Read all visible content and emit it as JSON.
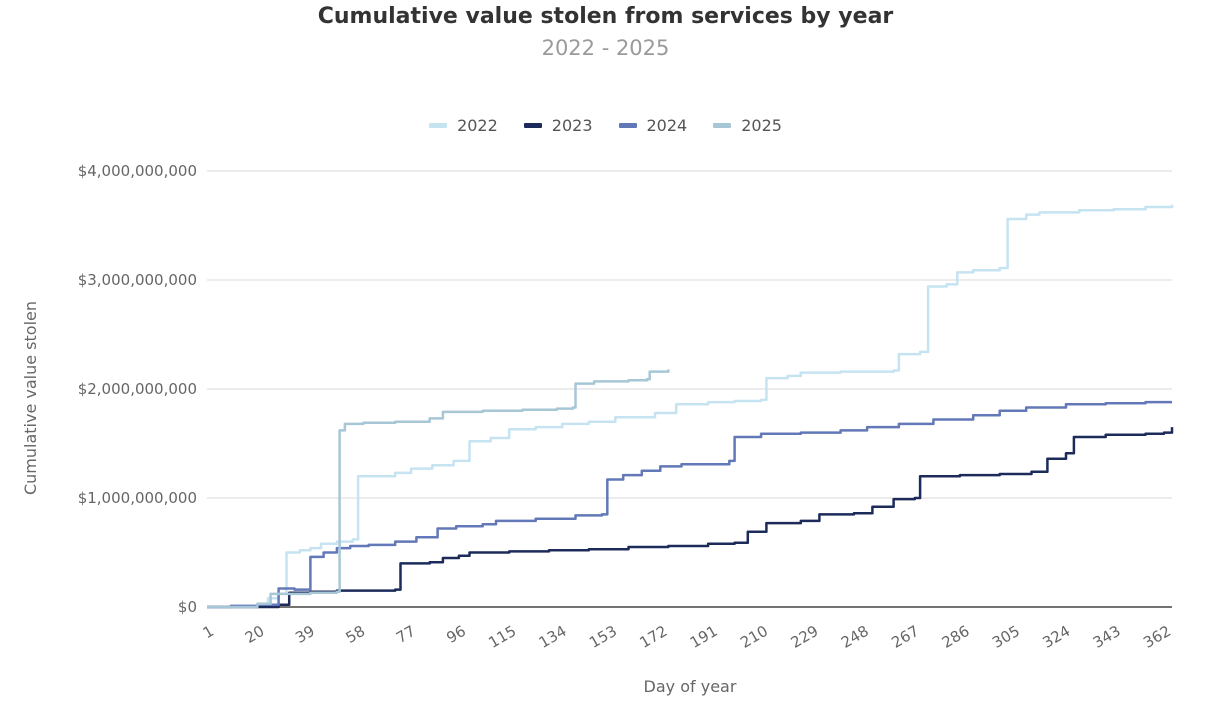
{
  "chart_data": {
    "type": "line",
    "title": "Cumulative value stolen from services by year",
    "subtitle": "2022 - 2025",
    "xlabel": "Day of year",
    "ylabel": "Cumulative value stolen",
    "xlim": [
      1,
      365
    ],
    "ylim": [
      0,
      4000000000
    ],
    "x_ticks": [
      1,
      20,
      39,
      58,
      77,
      96,
      115,
      134,
      153,
      172,
      191,
      210,
      229,
      248,
      267,
      286,
      305,
      324,
      343,
      362
    ],
    "y_ticks": [
      0,
      1000000000,
      2000000000,
      3000000000,
      4000000000
    ],
    "y_tick_labels": [
      "$0",
      "$1,000,000,000",
      "$2,000,000,000",
      "$3,000,000,000",
      "$4,000,000,000"
    ],
    "grid": true,
    "legend_position": "top",
    "series": [
      {
        "name": "2022",
        "color": "#c6e3f2",
        "points": [
          [
            1,
            0
          ],
          [
            10,
            10000000
          ],
          [
            20,
            30000000
          ],
          [
            24,
            80000000
          ],
          [
            28,
            120000000
          ],
          [
            31,
            500000000
          ],
          [
            36,
            520000000
          ],
          [
            40,
            540000000
          ],
          [
            44,
            580000000
          ],
          [
            50,
            600000000
          ],
          [
            56,
            620000000
          ],
          [
            58,
            1200000000
          ],
          [
            66,
            1200000000
          ],
          [
            72,
            1230000000
          ],
          [
            78,
            1270000000
          ],
          [
            86,
            1300000000
          ],
          [
            94,
            1340000000
          ],
          [
            100,
            1520000000
          ],
          [
            108,
            1550000000
          ],
          [
            115,
            1630000000
          ],
          [
            125,
            1650000000
          ],
          [
            135,
            1680000000
          ],
          [
            145,
            1700000000
          ],
          [
            155,
            1740000000
          ],
          [
            170,
            1780000000
          ],
          [
            178,
            1860000000
          ],
          [
            190,
            1880000000
          ],
          [
            200,
            1890000000
          ],
          [
            210,
            1900000000
          ],
          [
            212,
            2100000000
          ],
          [
            220,
            2120000000
          ],
          [
            225,
            2150000000
          ],
          [
            240,
            2160000000
          ],
          [
            260,
            2170000000
          ],
          [
            262,
            2320000000
          ],
          [
            270,
            2340000000
          ],
          [
            273,
            2940000000
          ],
          [
            280,
            2960000000
          ],
          [
            284,
            3070000000
          ],
          [
            290,
            3090000000
          ],
          [
            300,
            3110000000
          ],
          [
            303,
            3560000000
          ],
          [
            310,
            3600000000
          ],
          [
            315,
            3620000000
          ],
          [
            330,
            3640000000
          ],
          [
            343,
            3650000000
          ],
          [
            355,
            3670000000
          ],
          [
            365,
            3690000000
          ]
        ]
      },
      {
        "name": "2023",
        "color": "#1c2b5a",
        "points": [
          [
            1,
            0
          ],
          [
            20,
            0
          ],
          [
            28,
            20000000
          ],
          [
            32,
            130000000
          ],
          [
            40,
            140000000
          ],
          [
            50,
            150000000
          ],
          [
            60,
            150000000
          ],
          [
            72,
            160000000
          ],
          [
            74,
            400000000
          ],
          [
            85,
            410000000
          ],
          [
            90,
            450000000
          ],
          [
            96,
            470000000
          ],
          [
            100,
            500000000
          ],
          [
            115,
            510000000
          ],
          [
            130,
            520000000
          ],
          [
            145,
            530000000
          ],
          [
            160,
            550000000
          ],
          [
            175,
            560000000
          ],
          [
            190,
            580000000
          ],
          [
            200,
            590000000
          ],
          [
            205,
            690000000
          ],
          [
            212,
            770000000
          ],
          [
            225,
            790000000
          ],
          [
            232,
            850000000
          ],
          [
            245,
            860000000
          ],
          [
            252,
            920000000
          ],
          [
            260,
            990000000
          ],
          [
            268,
            1000000000
          ],
          [
            270,
            1200000000
          ],
          [
            285,
            1210000000
          ],
          [
            300,
            1220000000
          ],
          [
            312,
            1240000000
          ],
          [
            318,
            1360000000
          ],
          [
            325,
            1410000000
          ],
          [
            328,
            1560000000
          ],
          [
            340,
            1580000000
          ],
          [
            355,
            1590000000
          ],
          [
            362,
            1600000000
          ],
          [
            365,
            1650000000
          ]
        ]
      },
      {
        "name": "2024",
        "color": "#6278b8",
        "points": [
          [
            1,
            0
          ],
          [
            10,
            10000000
          ],
          [
            20,
            20000000
          ],
          [
            28,
            170000000
          ],
          [
            34,
            160000000
          ],
          [
            40,
            460000000
          ],
          [
            45,
            500000000
          ],
          [
            50,
            540000000
          ],
          [
            55,
            560000000
          ],
          [
            62,
            570000000
          ],
          [
            72,
            600000000
          ],
          [
            80,
            640000000
          ],
          [
            88,
            720000000
          ],
          [
            95,
            740000000
          ],
          [
            105,
            760000000
          ],
          [
            110,
            790000000
          ],
          [
            125,
            810000000
          ],
          [
            140,
            840000000
          ],
          [
            150,
            850000000
          ],
          [
            152,
            1170000000
          ],
          [
            158,
            1210000000
          ],
          [
            165,
            1250000000
          ],
          [
            172,
            1290000000
          ],
          [
            180,
            1310000000
          ],
          [
            198,
            1340000000
          ],
          [
            200,
            1560000000
          ],
          [
            210,
            1590000000
          ],
          [
            225,
            1600000000
          ],
          [
            240,
            1620000000
          ],
          [
            250,
            1650000000
          ],
          [
            262,
            1680000000
          ],
          [
            275,
            1720000000
          ],
          [
            290,
            1760000000
          ],
          [
            300,
            1800000000
          ],
          [
            310,
            1830000000
          ],
          [
            325,
            1860000000
          ],
          [
            340,
            1870000000
          ],
          [
            355,
            1880000000
          ],
          [
            365,
            1880000000
          ]
        ]
      },
      {
        "name": "2025",
        "color": "#a7c6d6",
        "points": [
          [
            1,
            0
          ],
          [
            20,
            30000000
          ],
          [
            25,
            120000000
          ],
          [
            35,
            120000000
          ],
          [
            40,
            130000000
          ],
          [
            50,
            140000000
          ],
          [
            51,
            1620000000
          ],
          [
            53,
            1680000000
          ],
          [
            60,
            1690000000
          ],
          [
            72,
            1700000000
          ],
          [
            85,
            1730000000
          ],
          [
            90,
            1790000000
          ],
          [
            105,
            1800000000
          ],
          [
            120,
            1810000000
          ],
          [
            133,
            1820000000
          ],
          [
            139,
            1830000000
          ],
          [
            140,
            2050000000
          ],
          [
            147,
            2070000000
          ],
          [
            160,
            2080000000
          ],
          [
            167,
            2090000000
          ],
          [
            168,
            2160000000
          ],
          [
            175,
            2180000000
          ]
        ]
      }
    ]
  }
}
